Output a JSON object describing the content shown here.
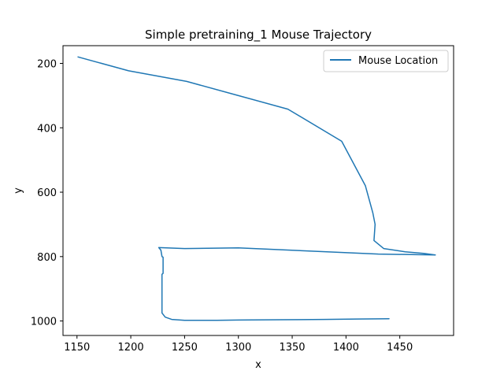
{
  "chart_data": {
    "type": "line",
    "title": "Simple pretraining_1 Mouse Trajectory",
    "xlabel": "x",
    "ylabel": "y",
    "xlim": [
      1137,
      1500
    ],
    "ylim": [
      1045,
      145
    ],
    "y_inverted": true,
    "xticks": [
      1150,
      1200,
      1250,
      1300,
      1350,
      1400,
      1450
    ],
    "yticks": [
      200,
      400,
      600,
      800,
      1000
    ],
    "grid": false,
    "legend": {
      "placement": "top-right",
      "entries": [
        "Mouse Location"
      ]
    },
    "colors": {
      "series": "#1f77b4"
    },
    "series": [
      {
        "name": "Mouse Location",
        "points": [
          [
            1151,
            180
          ],
          [
            1198,
            223
          ],
          [
            1252,
            256
          ],
          [
            1298,
            298
          ],
          [
            1346,
            342
          ],
          [
            1396,
            442
          ],
          [
            1418,
            580
          ],
          [
            1425,
            665
          ],
          [
            1427,
            700
          ],
          [
            1426,
            750
          ],
          [
            1435,
            775
          ],
          [
            1455,
            785
          ],
          [
            1472,
            790
          ],
          [
            1483,
            795
          ],
          [
            1430,
            792
          ],
          [
            1300,
            773
          ],
          [
            1250,
            775
          ],
          [
            1226,
            772
          ],
          [
            1228,
            780
          ],
          [
            1229,
            800
          ],
          [
            1230,
            802
          ],
          [
            1230,
            852
          ],
          [
            1229,
            855
          ],
          [
            1229,
            975
          ],
          [
            1232,
            988
          ],
          [
            1238,
            995
          ],
          [
            1250,
            998
          ],
          [
            1280,
            998
          ],
          [
            1300,
            997
          ],
          [
            1340,
            996
          ],
          [
            1380,
            995
          ],
          [
            1410,
            994
          ],
          [
            1440,
            993
          ]
        ]
      }
    ]
  }
}
